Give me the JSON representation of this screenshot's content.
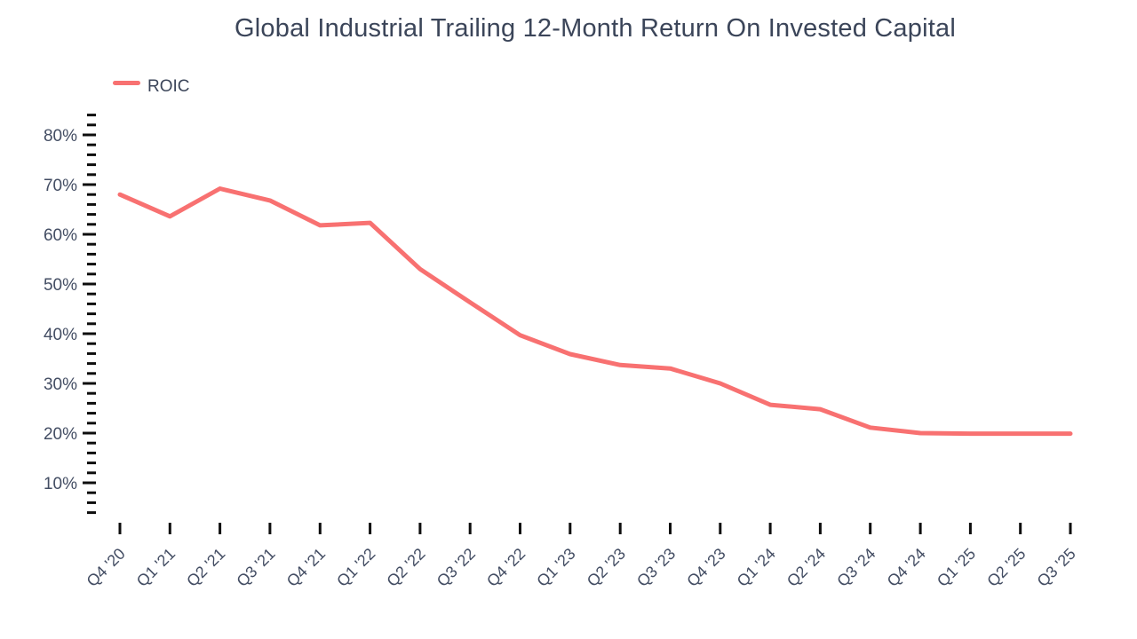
{
  "title": "Global Industrial Trailing 12-Month Return On Invested Capital",
  "legend": {
    "label": "ROIC"
  },
  "colors": {
    "line": "#f87171",
    "title_text": "#3b4559",
    "axis_text": "#434d63",
    "tick_mark": "#0d0d0d",
    "background": "#ffffff"
  },
  "chart_data": {
    "type": "line",
    "title": "Global Industrial Trailing 12-Month Return On Invested Capital",
    "unit": "%",
    "categories": [
      "Q4 '20",
      "Q1 '21",
      "Q2 '21",
      "Q3 '21",
      "Q4 '21",
      "Q1 '22",
      "Q2 '22",
      "Q3 '22",
      "Q4 '22",
      "Q1 '23",
      "Q2 '23",
      "Q3 '23",
      "Q4 '23",
      "Q1 '24",
      "Q2 '24",
      "Q3 '24",
      "Q4 '24",
      "Q1 '25",
      "Q2 '25",
      "Q3 '25"
    ],
    "series": [
      {
        "name": "ROIC",
        "values": [
          68.0,
          63.6,
          69.2,
          66.8,
          61.8,
          62.3,
          53.0,
          46.3,
          39.7,
          35.9,
          33.7,
          33.0,
          30.0,
          25.7,
          24.8,
          21.1,
          20.0,
          19.9,
          19.9,
          19.9
        ]
      }
    ],
    "xlabel": "",
    "ylabel": "",
    "ylim": [
      4,
      84
    ],
    "y_major_ticks": [
      10,
      20,
      30,
      40,
      50,
      60,
      70,
      80
    ],
    "y_minor_step": 2,
    "grid": false,
    "legend_position": "top-left",
    "x_label_rotation_deg": -45
  }
}
